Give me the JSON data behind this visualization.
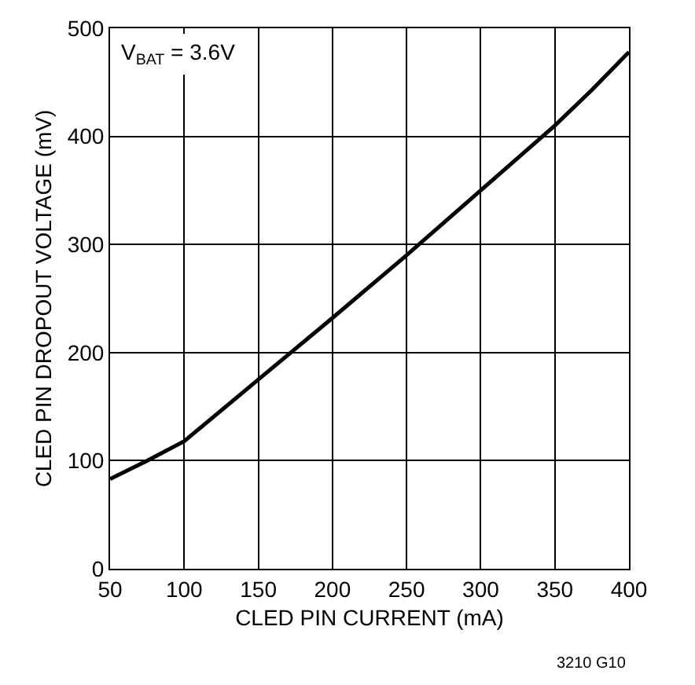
{
  "chart_data": {
    "type": "line",
    "xlabel": "CLED PIN CURRENT (mA)",
    "ylabel": "CLED PIN DROPOUT VOLTAGE (mV)",
    "x": [
      50,
      75,
      100,
      150,
      200,
      250,
      300,
      350,
      375,
      400
    ],
    "series": [
      {
        "color": "#000000",
        "values": [
          83,
          100,
          118,
          175,
          232,
          290,
          350,
          410,
          443,
          478
        ]
      }
    ],
    "xlim": [
      50,
      400
    ],
    "xticks": [
      50,
      100,
      150,
      200,
      250,
      300,
      350,
      400
    ],
    "ylim": [
      0,
      500
    ],
    "yticks": [
      0,
      100,
      200,
      300,
      400,
      500
    ],
    "grid": true,
    "marker": "none",
    "line_style": "solid",
    "annotations": [
      "V$_{BAT}$ = 3.6V",
      "3210 G10"
    ]
  }
}
